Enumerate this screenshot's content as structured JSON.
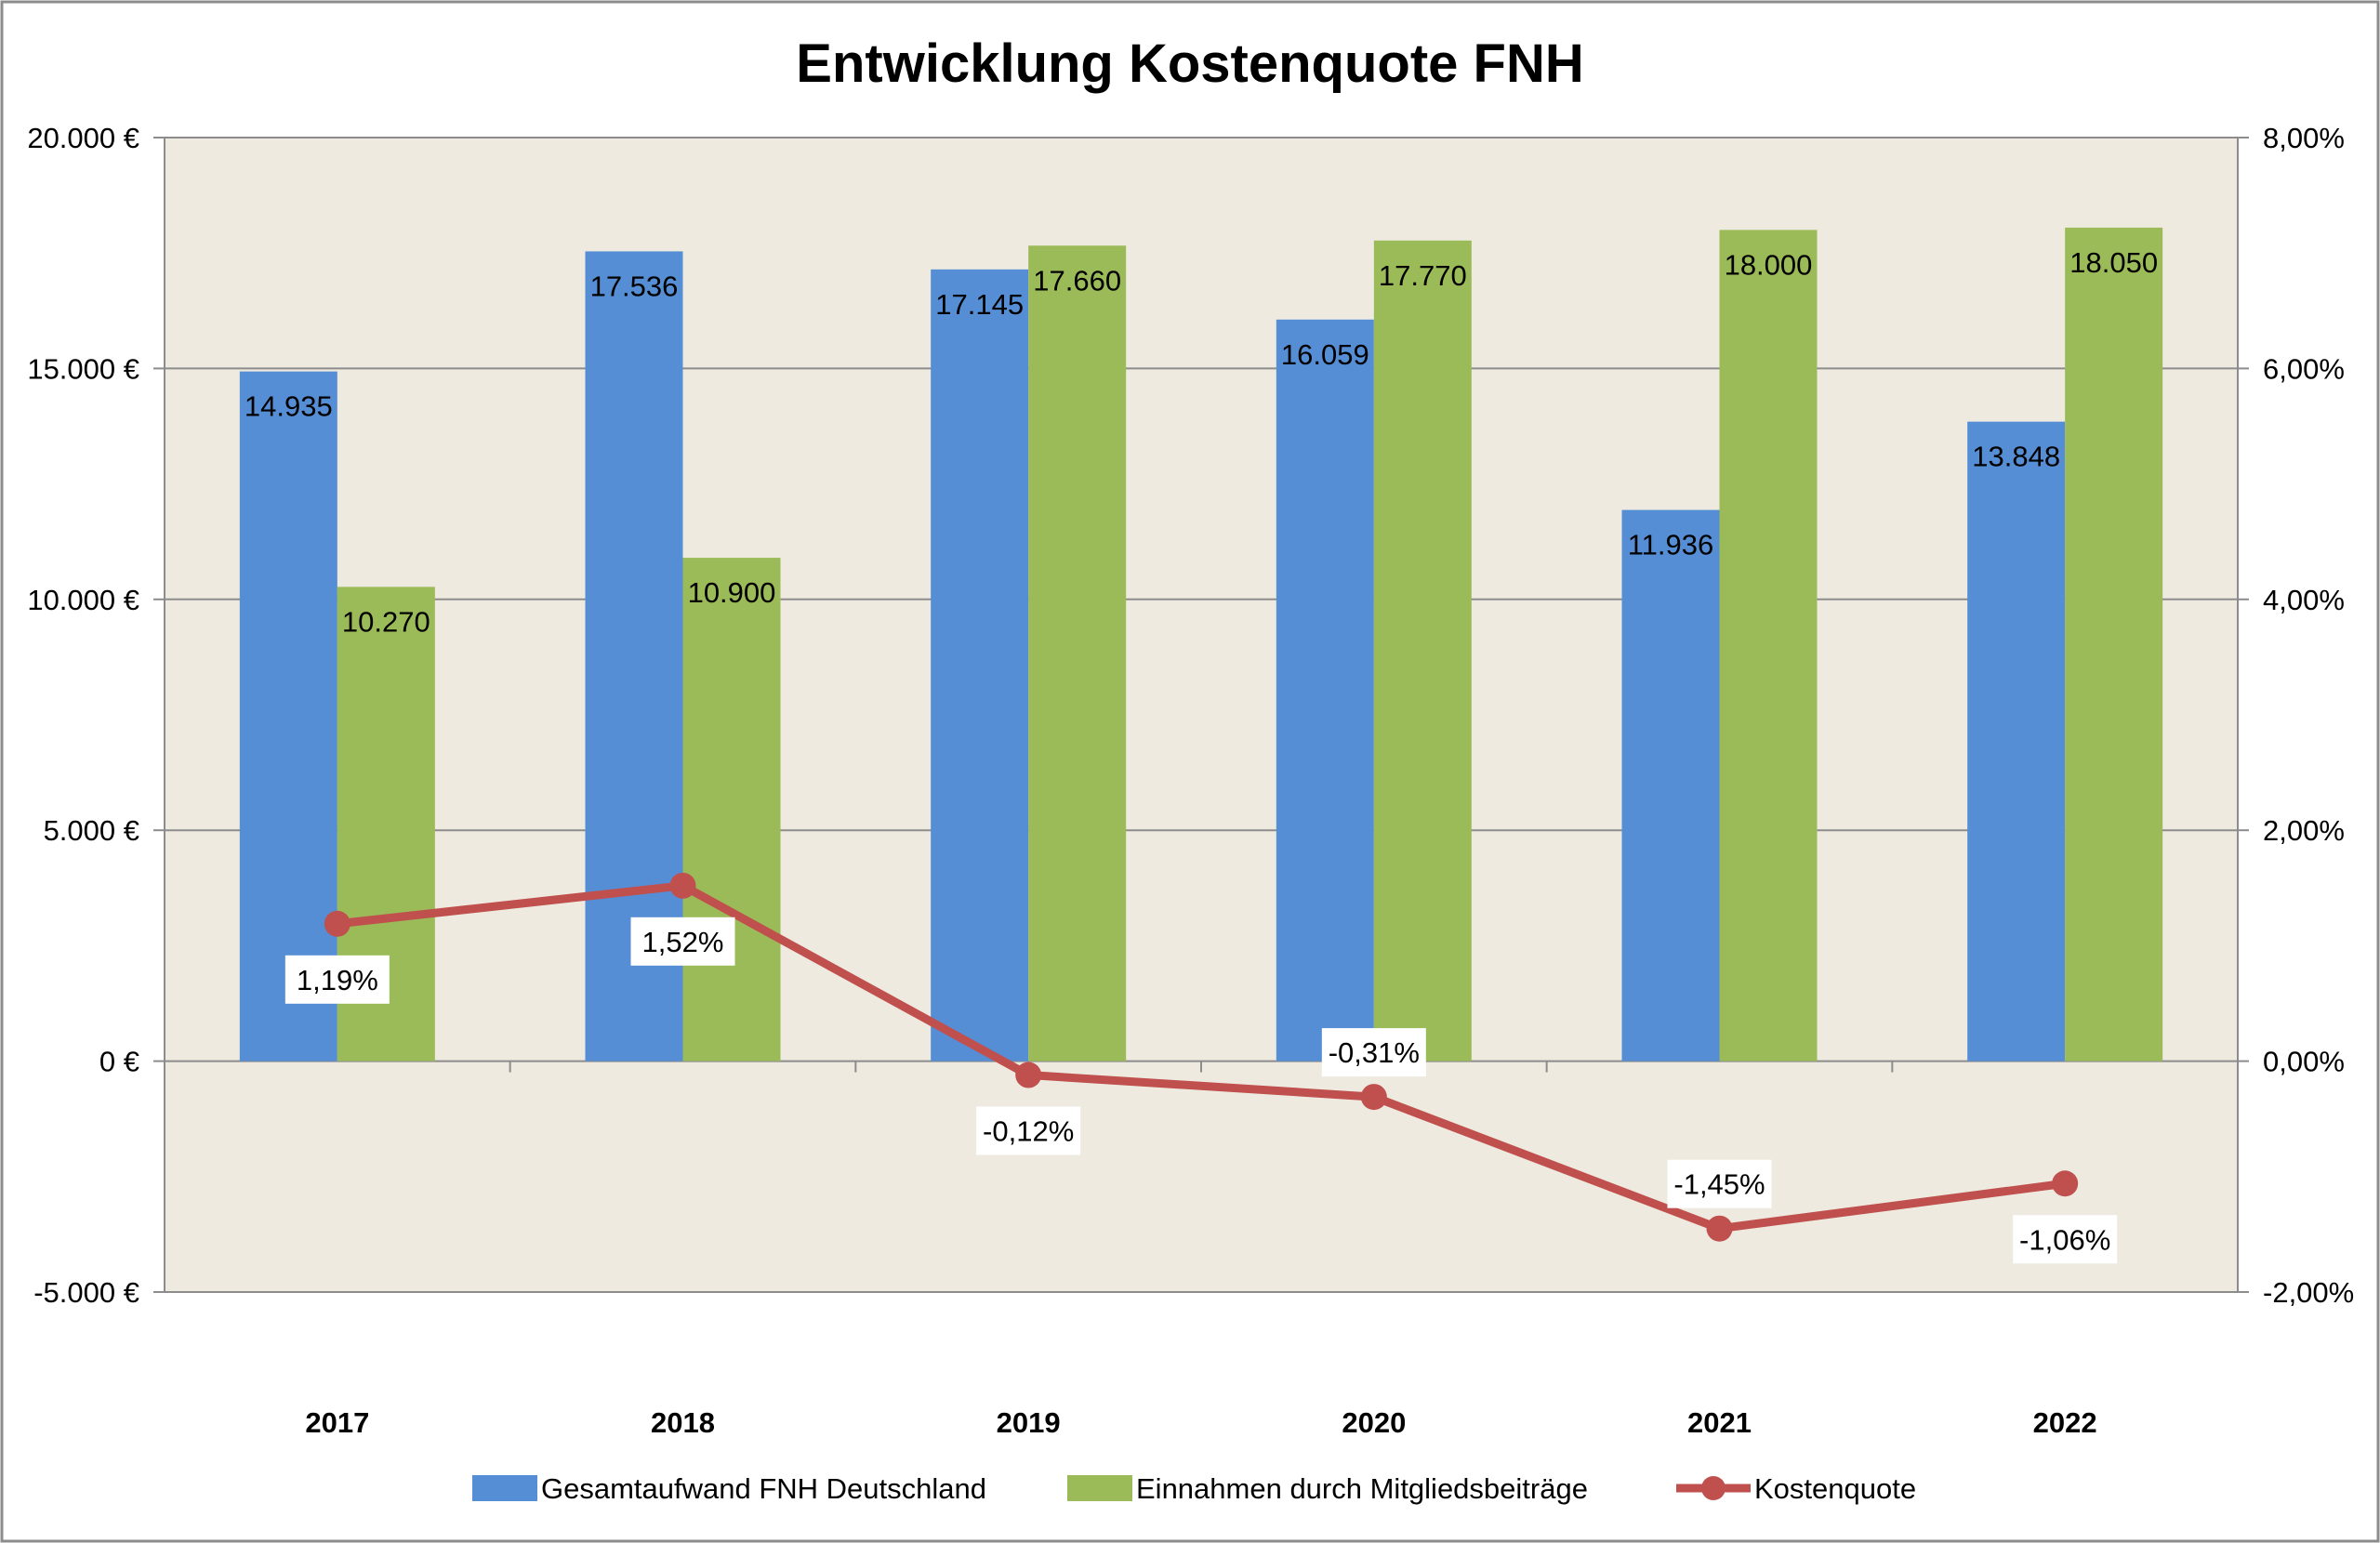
{
  "chart_data": {
    "type": "bar",
    "title": "Entwicklung Kostenquote FNH",
    "categories": [
      "2017",
      "2018",
      "2019",
      "2020",
      "2021",
      "2022"
    ],
    "series": [
      {
        "name": "Gesamtaufwand FNH Deutschland",
        "type": "bar",
        "axis": "left",
        "color": "#558ED5",
        "values": [
          14935,
          17536,
          17145,
          16059,
          11936,
          13848
        ],
        "labels": [
          "14.935",
          "17.536",
          "17.145",
          "16.059",
          "11.936",
          "13.848"
        ]
      },
      {
        "name": "Einnahmen durch Mitgliedsbeiträge",
        "type": "bar",
        "axis": "left",
        "color": "#9BBB59",
        "values": [
          10270,
          10900,
          17660,
          17770,
          18000,
          18050
        ],
        "labels": [
          "10.270",
          "10.900",
          "17.660",
          "17.770",
          "18.000",
          "18.050"
        ]
      },
      {
        "name": "Kostenquote",
        "type": "line",
        "axis": "right",
        "color": "#C0504D",
        "values": [
          1.19,
          1.52,
          -0.12,
          -0.31,
          -1.45,
          -1.06
        ],
        "labels": [
          "1,19%",
          "1,52%",
          "-0,12%",
          "-0,31%",
          "-1,45%",
          "-1,06%"
        ]
      }
    ],
    "y_left": {
      "min": -5000,
      "max": 20000,
      "ticks": [
        20000,
        15000,
        10000,
        5000,
        0,
        -5000
      ],
      "tick_labels": [
        "20.000 €",
        "15.000 €",
        "10.000 €",
        "5.000 €",
        "0 €",
        "-5.000 €"
      ]
    },
    "y_right": {
      "min": -2,
      "max": 8,
      "ticks": [
        8,
        6,
        4,
        2,
        0,
        -2
      ],
      "tick_labels": [
        "8,00%",
        "6,00%",
        "4,00%",
        "2,00%",
        "0,00%",
        "-2,00%"
      ]
    },
    "grid": true,
    "legend_position": "bottom",
    "plot_background": "#EEEAE0",
    "gridline_color": "#8C8C8C"
  }
}
